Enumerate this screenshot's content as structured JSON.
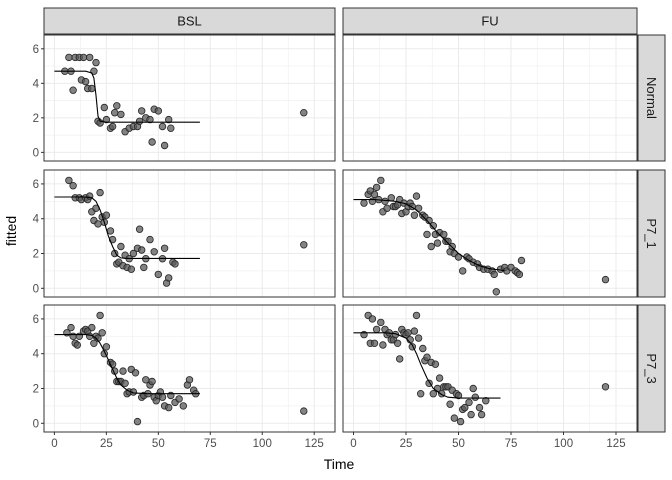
{
  "chart_data": {
    "type": "scatter",
    "title": "",
    "xlabel": "Time",
    "ylabel": "fitted",
    "xlim": [
      -5,
      135
    ],
    "ylim": [
      -0.5,
      6.8
    ],
    "x_ticks": [
      "0",
      "25",
      "50",
      "75",
      "100",
      "125"
    ],
    "y_ticks": [
      "0",
      "2",
      "4",
      "6"
    ],
    "column_facets": [
      "BSL",
      "FU"
    ],
    "row_facets": [
      "Normal",
      "P7_1",
      "P7_3"
    ],
    "grid": true,
    "colors": {
      "point_fill": "#595959",
      "point_stroke": "#262626",
      "strip_bg": "#d9d9d9",
      "line": "#000000"
    },
    "panels": [
      {
        "col": "BSL",
        "row": "Normal",
        "points": [
          [
            5,
            4.7
          ],
          [
            7,
            5.5
          ],
          [
            8,
            4.7
          ],
          [
            9,
            3.6
          ],
          [
            10,
            5.5
          ],
          [
            12,
            5.5
          ],
          [
            13,
            4.2
          ],
          [
            14,
            5.5
          ],
          [
            15,
            4.1
          ],
          [
            16,
            3.7
          ],
          [
            17,
            5.5
          ],
          [
            18,
            3.7
          ],
          [
            19,
            4.7
          ],
          [
            20,
            5.2
          ],
          [
            21,
            1.8
          ],
          [
            22,
            1.7
          ],
          [
            24,
            2.6
          ],
          [
            25,
            1.9
          ],
          [
            27,
            1.4
          ],
          [
            28,
            1.5
          ],
          [
            29,
            2.3
          ],
          [
            30,
            2.7
          ],
          [
            32,
            2.2
          ],
          [
            34,
            1.2
          ],
          [
            36,
            1.4
          ],
          [
            38,
            1.5
          ],
          [
            40,
            1.5
          ],
          [
            41,
            1.8
          ],
          [
            42,
            2.4
          ],
          [
            44,
            2.0
          ],
          [
            46,
            1.9
          ],
          [
            47,
            0.6
          ],
          [
            48,
            2.5
          ],
          [
            50,
            2.4
          ],
          [
            52,
            1.5
          ],
          [
            53,
            0.4
          ],
          [
            55,
            1.9
          ],
          [
            56,
            1.4
          ],
          [
            120,
            2.3
          ]
        ],
        "curve": [
          [
            0,
            4.7
          ],
          [
            15,
            4.7
          ],
          [
            18,
            4.6
          ],
          [
            19,
            4.3
          ],
          [
            20,
            3.3
          ],
          [
            21,
            2.1
          ],
          [
            22,
            1.8
          ],
          [
            25,
            1.75
          ],
          [
            70,
            1.75
          ]
        ]
      },
      {
        "col": "FU",
        "row": "Normal",
        "points": [],
        "curve": []
      },
      {
        "col": "BSL",
        "row": "P7_1",
        "points": [
          [
            7,
            6.2
          ],
          [
            9,
            5.9
          ],
          [
            10,
            5.2
          ],
          [
            12,
            5.2
          ],
          [
            13,
            5.1
          ],
          [
            15,
            5.2
          ],
          [
            16,
            5.1
          ],
          [
            17,
            5.3
          ],
          [
            18,
            4.4
          ],
          [
            19,
            3.9
          ],
          [
            20,
            4.6
          ],
          [
            21,
            3.7
          ],
          [
            22,
            5.5
          ],
          [
            23,
            4.1
          ],
          [
            24,
            3.8
          ],
          [
            25,
            4.2
          ],
          [
            27,
            3.3
          ],
          [
            28,
            2.8
          ],
          [
            29,
            2.0
          ],
          [
            30,
            1.4
          ],
          [
            31,
            1.5
          ],
          [
            32,
            2.4
          ],
          [
            33,
            1.3
          ],
          [
            34,
            1.9
          ],
          [
            35,
            1.2
          ],
          [
            36,
            1.7
          ],
          [
            37,
            1.1
          ],
          [
            38,
            2.0
          ],
          [
            40,
            2.3
          ],
          [
            41,
            3.4
          ],
          [
            42,
            2.2
          ],
          [
            43,
            1.2
          ],
          [
            44,
            1.7
          ],
          [
            46,
            2.8
          ],
          [
            48,
            2.1
          ],
          [
            50,
            0.8
          ],
          [
            52,
            1.7
          ],
          [
            53,
            2.3
          ],
          [
            54,
            0.3
          ],
          [
            55,
            0.6
          ],
          [
            57,
            1.5
          ],
          [
            58,
            1.4
          ],
          [
            120,
            2.5
          ]
        ],
        "curve": [
          [
            0,
            5.25
          ],
          [
            15,
            5.25
          ],
          [
            18,
            5.2
          ],
          [
            20,
            5.0
          ],
          [
            22,
            4.5
          ],
          [
            24,
            3.8
          ],
          [
            26,
            3.0
          ],
          [
            28,
            2.4
          ],
          [
            30,
            1.9
          ],
          [
            32,
            1.75
          ],
          [
            35,
            1.72
          ],
          [
            70,
            1.72
          ]
        ]
      },
      {
        "col": "FU",
        "row": "P7_1",
        "points": [
          [
            5,
            4.9
          ],
          [
            7,
            5.4
          ],
          [
            8,
            5.6
          ],
          [
            9,
            5.0
          ],
          [
            10,
            5.4
          ],
          [
            11,
            5.8
          ],
          [
            12,
            5.1
          ],
          [
            13,
            6.2
          ],
          [
            14,
            4.4
          ],
          [
            15,
            5.0
          ],
          [
            16,
            4.6
          ],
          [
            18,
            5.2
          ],
          [
            19,
            4.7
          ],
          [
            20,
            4.7
          ],
          [
            21,
            4.8
          ],
          [
            22,
            5.1
          ],
          [
            23,
            4.3
          ],
          [
            24,
            4.9
          ],
          [
            25,
            4.4
          ],
          [
            26,
            4.7
          ],
          [
            27,
            4.9
          ],
          [
            28,
            4.7
          ],
          [
            29,
            4.2
          ],
          [
            30,
            5.3
          ],
          [
            31,
            4.6
          ],
          [
            33,
            4.2
          ],
          [
            34,
            4.1
          ],
          [
            35,
            3.1
          ],
          [
            36,
            3.9
          ],
          [
            37,
            2.4
          ],
          [
            38,
            3.6
          ],
          [
            39,
            3.1
          ],
          [
            40,
            2.6
          ],
          [
            41,
            3.2
          ],
          [
            43,
            3.1
          ],
          [
            44,
            2.7
          ],
          [
            45,
            2.7
          ],
          [
            46,
            2.1
          ],
          [
            47,
            2.4
          ],
          [
            48,
            2.0
          ],
          [
            50,
            1.8
          ],
          [
            52,
            1.0
          ],
          [
            54,
            1.8
          ],
          [
            55,
            1.7
          ],
          [
            57,
            1.5
          ],
          [
            59,
            1.4
          ],
          [
            60,
            1.2
          ],
          [
            62,
            1.1
          ],
          [
            64,
            1.1
          ],
          [
            66,
            1.0
          ],
          [
            67,
            0.8
          ],
          [
            68,
            -0.2
          ],
          [
            70,
            1.1
          ],
          [
            72,
            1.2
          ],
          [
            73,
            1.0
          ],
          [
            75,
            1.2
          ],
          [
            77,
            1.0
          ],
          [
            78,
            0.9
          ],
          [
            79,
            0.8
          ],
          [
            80,
            1.6
          ],
          [
            120,
            0.5
          ]
        ],
        "curve": [
          [
            0,
            5.1
          ],
          [
            10,
            5.1
          ],
          [
            15,
            5.05
          ],
          [
            20,
            5.0
          ],
          [
            25,
            4.85
          ],
          [
            28,
            4.65
          ],
          [
            30,
            4.5
          ],
          [
            35,
            3.9
          ],
          [
            40,
            3.2
          ],
          [
            45,
            2.6
          ],
          [
            50,
            2.0
          ],
          [
            55,
            1.6
          ],
          [
            60,
            1.3
          ],
          [
            65,
            1.12
          ],
          [
            70,
            1.05
          ],
          [
            72,
            1.0
          ]
        ]
      },
      {
        "col": "BSL",
        "row": "P7_3",
        "points": [
          [
            6,
            5.2
          ],
          [
            8,
            5.5
          ],
          [
            9,
            5.0
          ],
          [
            10,
            4.6
          ],
          [
            11,
            4.5
          ],
          [
            12,
            5.0
          ],
          [
            14,
            5.3
          ],
          [
            15,
            5.4
          ],
          [
            16,
            5.3
          ],
          [
            17,
            5.0
          ],
          [
            18,
            5.5
          ],
          [
            19,
            4.6
          ],
          [
            20,
            5.0
          ],
          [
            21,
            4.9
          ],
          [
            22,
            6.2
          ],
          [
            23,
            5.2
          ],
          [
            24,
            4.0
          ],
          [
            25,
            4.4
          ],
          [
            27,
            3.5
          ],
          [
            28,
            3.4
          ],
          [
            29,
            3.0
          ],
          [
            30,
            2.4
          ],
          [
            31,
            2.4
          ],
          [
            32,
            2.4
          ],
          [
            33,
            3.0
          ],
          [
            34,
            2.3
          ],
          [
            35,
            1.7
          ],
          [
            36,
            1.8
          ],
          [
            37,
            3.1
          ],
          [
            38,
            1.8
          ],
          [
            39,
            2.9
          ],
          [
            40,
            0.1
          ],
          [
            42,
            1.5
          ],
          [
            43,
            1.6
          ],
          [
            44,
            2.5
          ],
          [
            45,
            1.7
          ],
          [
            46,
            2.2
          ],
          [
            47,
            2.4
          ],
          [
            48,
            1.5
          ],
          [
            49,
            1.3
          ],
          [
            50,
            1.6
          ],
          [
            51,
            1.8
          ],
          [
            52,
            1.5
          ],
          [
            53,
            1.0
          ],
          [
            55,
            0.9
          ],
          [
            56,
            1.6
          ],
          [
            58,
            1.2
          ],
          [
            60,
            1.4
          ],
          [
            62,
            1.0
          ],
          [
            64,
            2.2
          ],
          [
            65,
            2.5
          ],
          [
            67,
            1.9
          ],
          [
            68,
            1.7
          ],
          [
            120,
            0.7
          ]
        ],
        "curve": [
          [
            0,
            5.1
          ],
          [
            15,
            5.1
          ],
          [
            18,
            5.05
          ],
          [
            20,
            4.9
          ],
          [
            22,
            4.6
          ],
          [
            25,
            3.9
          ],
          [
            28,
            3.1
          ],
          [
            30,
            2.6
          ],
          [
            32,
            2.2
          ],
          [
            35,
            1.9
          ],
          [
            38,
            1.75
          ],
          [
            45,
            1.7
          ],
          [
            70,
            1.7
          ]
        ]
      },
      {
        "col": "FU",
        "row": "P7_3",
        "points": [
          [
            5,
            5.1
          ],
          [
            7,
            6.2
          ],
          [
            8,
            4.6
          ],
          [
            9,
            6.0
          ],
          [
            10,
            4.6
          ],
          [
            11,
            5.4
          ],
          [
            13,
            5.8
          ],
          [
            14,
            4.5
          ],
          [
            15,
            5.4
          ],
          [
            16,
            5.1
          ],
          [
            17,
            5.2
          ],
          [
            18,
            4.8
          ],
          [
            19,
            4.8
          ],
          [
            20,
            5.1
          ],
          [
            21,
            4.6
          ],
          [
            22,
            3.7
          ],
          [
            23,
            5.4
          ],
          [
            24,
            5.2
          ],
          [
            25,
            5.1
          ],
          [
            26,
            5.2
          ],
          [
            27,
            4.8
          ],
          [
            28,
            4.4
          ],
          [
            29,
            5.3
          ],
          [
            30,
            6.2
          ],
          [
            31,
            4.9
          ],
          [
            32,
            1.7
          ],
          [
            33,
            4.3
          ],
          [
            34,
            3.6
          ],
          [
            35,
            3.8
          ],
          [
            36,
            2.3
          ],
          [
            37,
            3.5
          ],
          [
            38,
            1.7
          ],
          [
            39,
            3.4
          ],
          [
            40,
            2.0
          ],
          [
            41,
            2.6
          ],
          [
            42,
            1.7
          ],
          [
            43,
            2.1
          ],
          [
            44,
            2.1
          ],
          [
            45,
            2.1
          ],
          [
            46,
            1.1
          ],
          [
            47,
            1.9
          ],
          [
            48,
            0.3
          ],
          [
            49,
            1.7
          ],
          [
            50,
            1.6
          ],
          [
            51,
            0.1
          ],
          [
            52,
            0.8
          ],
          [
            53,
            0.9
          ],
          [
            55,
            1.2
          ],
          [
            56,
            0.5
          ],
          [
            57,
            2.0
          ],
          [
            58,
            1.5
          ],
          [
            60,
            0.9
          ],
          [
            61,
            0.5
          ],
          [
            63,
            1.3
          ],
          [
            120,
            2.1
          ]
        ],
        "curve": [
          [
            0,
            5.2
          ],
          [
            15,
            5.2
          ],
          [
            20,
            5.15
          ],
          [
            25,
            4.9
          ],
          [
            28,
            4.5
          ],
          [
            30,
            4.0
          ],
          [
            32,
            3.4
          ],
          [
            35,
            2.6
          ],
          [
            38,
            2.0
          ],
          [
            42,
            1.65
          ],
          [
            45,
            1.5
          ],
          [
            50,
            1.45
          ],
          [
            70,
            1.45
          ]
        ]
      }
    ]
  }
}
